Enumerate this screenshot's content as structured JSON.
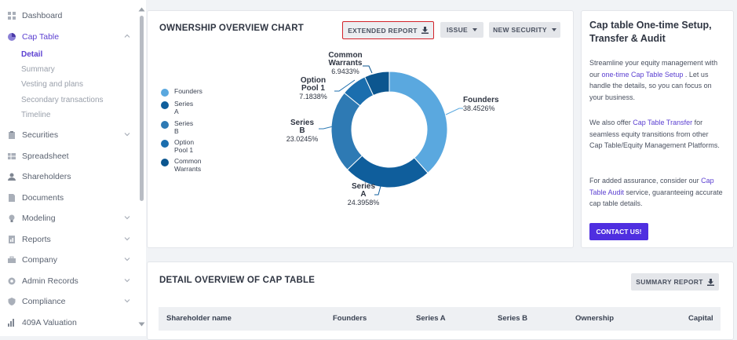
{
  "sidebar": {
    "items": [
      {
        "label": "Dashboard",
        "icon": "dashboard-icon"
      },
      {
        "label": "Cap Table",
        "icon": "pie-chart-icon",
        "active": true
      },
      {
        "label": "Securities",
        "icon": "clipboard-icon"
      },
      {
        "label": "Spreadsheet",
        "icon": "spreadsheet-icon"
      },
      {
        "label": "Shareholders",
        "icon": "person-icon"
      },
      {
        "label": "Documents",
        "icon": "document-icon"
      },
      {
        "label": "Modeling",
        "icon": "lightbulb-icon"
      },
      {
        "label": "Reports",
        "icon": "report-icon"
      },
      {
        "label": "Company",
        "icon": "briefcase-icon"
      },
      {
        "label": "Admin Records",
        "icon": "admin-icon"
      },
      {
        "label": "Compliance",
        "icon": "shield-icon"
      },
      {
        "label": "409A Valuation",
        "icon": "bar-chart-icon"
      }
    ],
    "cap_table_sub": [
      "Detail",
      "Summary",
      "Vesting and plans",
      "Secondary transactions",
      "Timeline"
    ]
  },
  "ownership": {
    "title": "OWNERSHIP OVERVIEW CHART",
    "extended_report_label": "EXTENDED REPORT",
    "issue_label": "ISSUE",
    "new_security_label": "NEW SECURITY"
  },
  "chart_data": {
    "type": "pie",
    "donut": true,
    "categories": [
      "Founders",
      "Series A",
      "Series B",
      "Option Pool 1",
      "Common Warrants"
    ],
    "values": [
      38.4526,
      24.3958,
      23.0245,
      7.1838,
      6.9433
    ],
    "colors": [
      "#5aa8df",
      "#0f5e9c",
      "#2e7ab4",
      "#1b6eae",
      "#0c568f"
    ],
    "legend": [
      {
        "line1": "Founders",
        "line2": ""
      },
      {
        "line1": "Series",
        "line2": "A"
      },
      {
        "line1": "Series",
        "line2": "B"
      },
      {
        "line1": "Option",
        "line2": "Pool 1"
      },
      {
        "line1": "Common",
        "line2": "Warrants"
      }
    ],
    "labels": [
      {
        "name1": "Founders",
        "name2": "",
        "pct": "38.4526%"
      },
      {
        "name1": "Series",
        "name2": "A",
        "pct": "24.3958%"
      },
      {
        "name1": "Series",
        "name2": "B",
        "pct": "23.0245%"
      },
      {
        "name1": "Option",
        "name2": "Pool 1",
        "pct": "7.1838%"
      },
      {
        "name1": "Common",
        "name2": "Warrants",
        "pct": "6.9433%"
      }
    ],
    "legend_position": "left"
  },
  "info": {
    "title": "Cap table One-time Setup, Transfer & Audit",
    "p1_a": "Streamline your equity management with our ",
    "p1_link": "one-time Cap Table Setup",
    "p1_b": " . Let us handle the details, so you can focus on your business.",
    "p2_a": "We also offer ",
    "p2_link": "Cap Table Transfer",
    "p2_b": " for seamless equity transitions from other Cap Table/Equity Management Platforms.",
    "p3_a": "For added assurance, consider our ",
    "p3_link": "Cap Table Audit",
    "p3_b": " service, guaranteeing accurate cap table details.",
    "contact_label": "CONTACT US!"
  },
  "detail": {
    "title": "DETAIL OVERVIEW OF CAP TABLE",
    "summary_report_label": "SUMMARY REPORT",
    "columns": [
      "Shareholder name",
      "Founders",
      "Series A",
      "Series B",
      "Ownership",
      "Capital"
    ]
  }
}
